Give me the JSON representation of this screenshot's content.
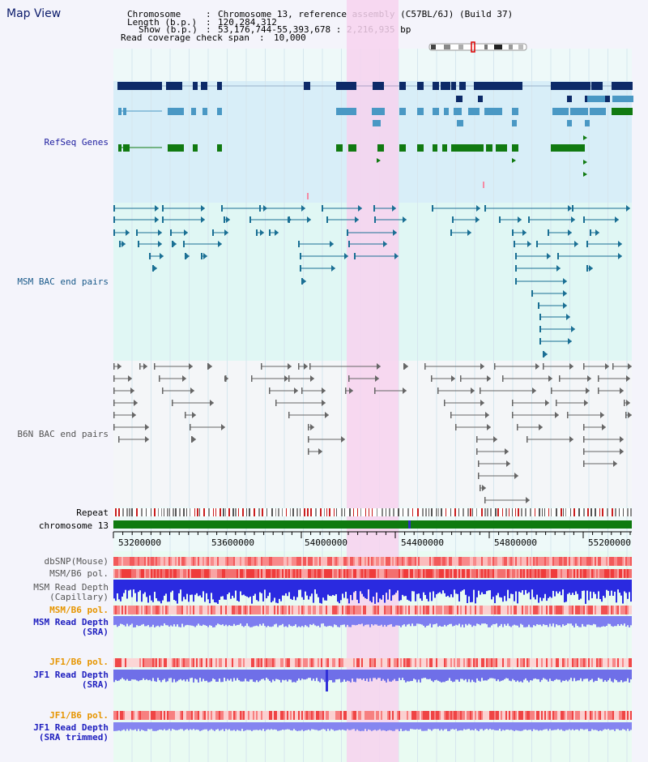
{
  "view_title": "Map View",
  "header": {
    "chromosome_key": "Chromosome",
    "chromosome_value": "Chromosome 13, reference assembly (C57BL/6J) (Build 37)",
    "length_key": "Length (b.p.)",
    "length_value": "120,284,312",
    "show_key": "Show (b.p.)",
    "show_value": "53,176,744-55,393,678 : 2,216,935 bp",
    "coverage_key": "Read coverage check span",
    "coverage_value": "10,000"
  },
  "tracks": {
    "refseq": "RefSeq Genes",
    "msm_bac": "MSM BAC end pairs",
    "b6n_bac": "B6N BAC end pairs",
    "repeat": "Repeat",
    "chromosome": "chromosome 13",
    "dbsnp": "dbSNP(Mouse)",
    "msm_b6_pol_1": "MSM/B6 pol.",
    "msm_read_depth_cap_1": "MSM Read Depth",
    "msm_read_depth_cap_2": "(Capillary)",
    "msm_b6_pol_2": "MSM/B6 pol.",
    "msm_read_depth_sra_1": "MSM Read Depth",
    "msm_read_depth_sra_2": "(SRA)",
    "jf1_b6_pol_1": "JF1/B6 pol.",
    "jf1_read_depth_1": "JF1 Read Depth",
    "jf1_read_depth_2": "(SRA)",
    "jf1_b6_pol_2": "JF1/B6 pol.",
    "jf1_read_depth_trim_1": "JF1 Read Depth",
    "jf1_read_depth_trim_2": "(SRA trimmed)"
  },
  "axis_ticks": [
    "53200000",
    "53600000",
    "54000000",
    "54400000",
    "54800000",
    "55200000"
  ],
  "colors": {
    "refseq_bg": "#d8eef8",
    "msm_bg": "#e0f7f4",
    "b6n_bg": "#f4f6f8",
    "highlight": "#f7d2ee",
    "navy": "#0d2a68",
    "steel": "#4a98c4",
    "green": "#117a11",
    "teal": "#1a6f94",
    "gray": "#666666",
    "chrom": "#0f7a0f"
  }
}
